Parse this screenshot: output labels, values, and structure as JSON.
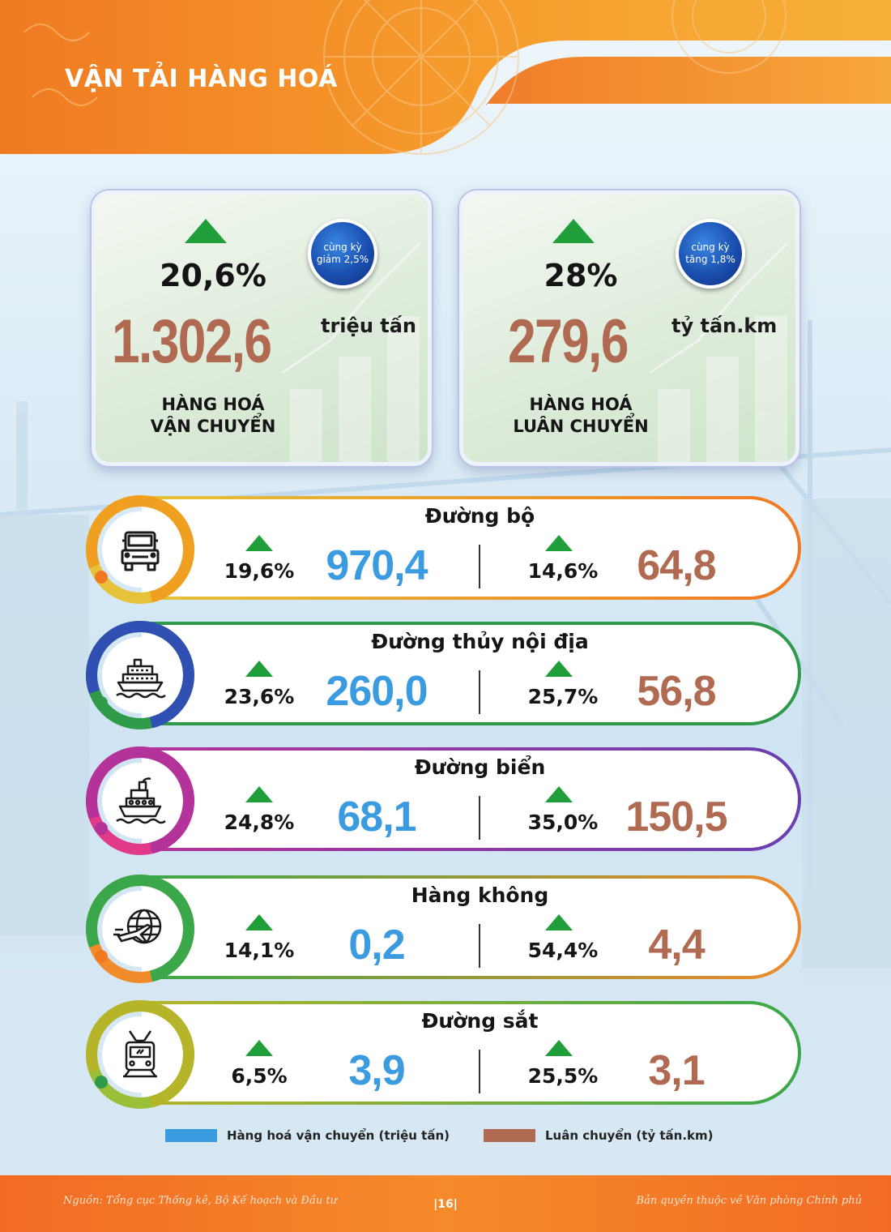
{
  "header": {
    "title": "VẬN TẢI HÀNG HOÁ"
  },
  "summary": [
    {
      "pct": "20,6%",
      "badge_line1": "cùng kỳ",
      "badge_line2": "giảm 2,5%",
      "value": "1.302,6",
      "unit": "triệu tấn",
      "label_line1": "HÀNG HOÁ",
      "label_line2": "VẬN CHUYỂN"
    },
    {
      "pct": "28%",
      "badge_line1": "cùng kỳ",
      "badge_line2": "tăng 1,8%",
      "value": "279,6",
      "unit": "tỷ tấn.km",
      "label_line1": "HÀNG HOÁ",
      "label_line2": "LUÂN CHUYỂN"
    }
  ],
  "modes": [
    {
      "name": "Đường bộ",
      "icon": "truck-icon",
      "color": "#f0a020",
      "pct1": "19,6%",
      "val1": "970,4",
      "pct2": "14,6%",
      "val2": "64,8"
    },
    {
      "name": "Đường thủy nội địa",
      "icon": "ferry-icon",
      "color": "#2f4fb3",
      "pct1": "23,6%",
      "val1": "260,0",
      "pct2": "25,7%",
      "val2": "56,8"
    },
    {
      "name": "Đường biển",
      "icon": "ship-icon",
      "color": "#b3339a",
      "pct1": "24,8%",
      "val1": "68,1",
      "pct2": "35,0%",
      "val2": "150,5"
    },
    {
      "name": "Hàng không",
      "icon": "plane-globe-icon",
      "color": "#3aa84a",
      "pct1": "14,1%",
      "val1": "0,2",
      "pct2": "54,4%",
      "val2": "4,4"
    },
    {
      "name": "Đường sắt",
      "icon": "train-icon",
      "color": "#b6b52a",
      "pct1": "6,5%",
      "val1": "3,9",
      "pct2": "25,5%",
      "val2": "3,1"
    }
  ],
  "legend": [
    {
      "label": "Hàng hoá vận chuyển (triệu tấn)",
      "color": "#3a9be0"
    },
    {
      "label": "Luân chuyển (tỷ tấn.km)",
      "color": "#b06a52"
    }
  ],
  "footer": {
    "source": "Nguồn: Tổng cục Thống kê, Bộ Kế hoạch và Đầu tư",
    "page": "|16|",
    "copyright": "Bản quyền thuộc về Văn phòng Chính phủ"
  }
}
